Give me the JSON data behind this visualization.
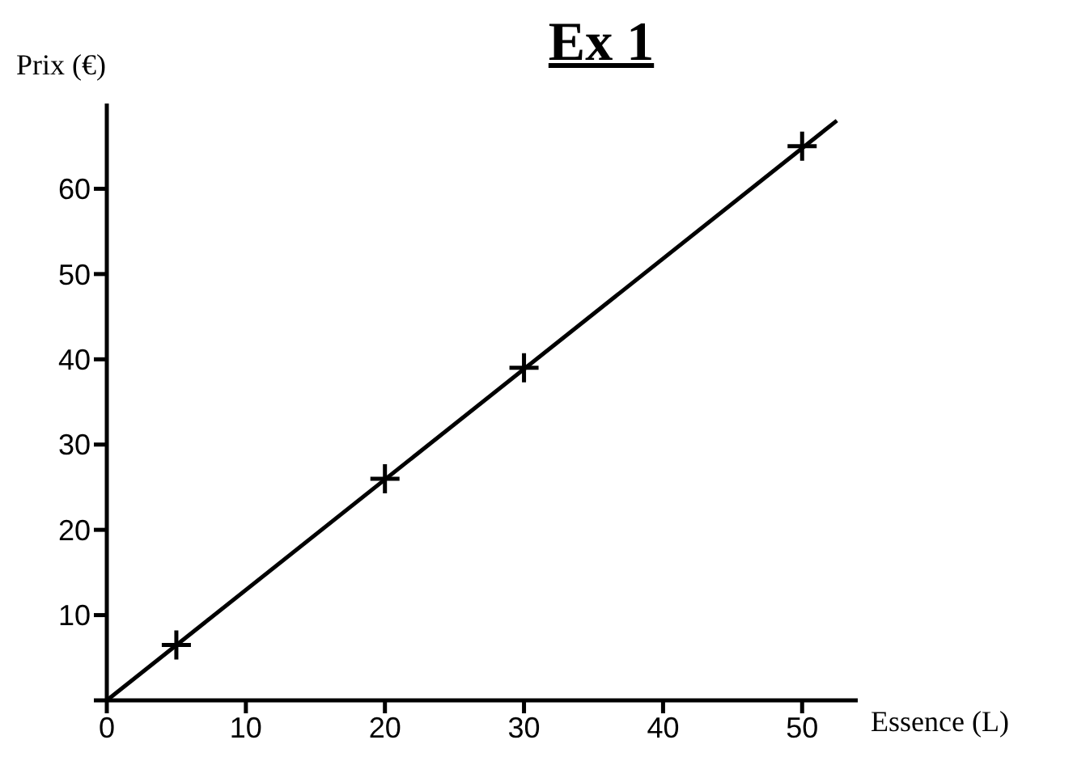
{
  "chart_data": {
    "type": "scatter",
    "title": "Ex 1",
    "xlabel": "Essence (L)",
    "ylabel": "Prix (€)",
    "xlim": [
      0,
      54
    ],
    "ylim": [
      0,
      70
    ],
    "xticks": [
      {
        "value": 0,
        "label": "0"
      },
      10,
      20,
      30,
      40,
      50
    ],
    "yticks": [
      {
        "value": 0,
        "label": null
      },
      10,
      20,
      30,
      40,
      50,
      60
    ],
    "marker": "cross",
    "grid": false,
    "legend": false,
    "series": [
      {
        "color": "#000000",
        "x": [
          5,
          20,
          30,
          50
        ],
        "values": [
          6.5,
          26,
          39,
          65
        ]
      },
      {
        "type": "line",
        "color": "#000000",
        "x": [
          0,
          52.5
        ],
        "values": [
          0,
          68
        ],
        "marker": "none",
        "line_style": "solid"
      }
    ]
  }
}
